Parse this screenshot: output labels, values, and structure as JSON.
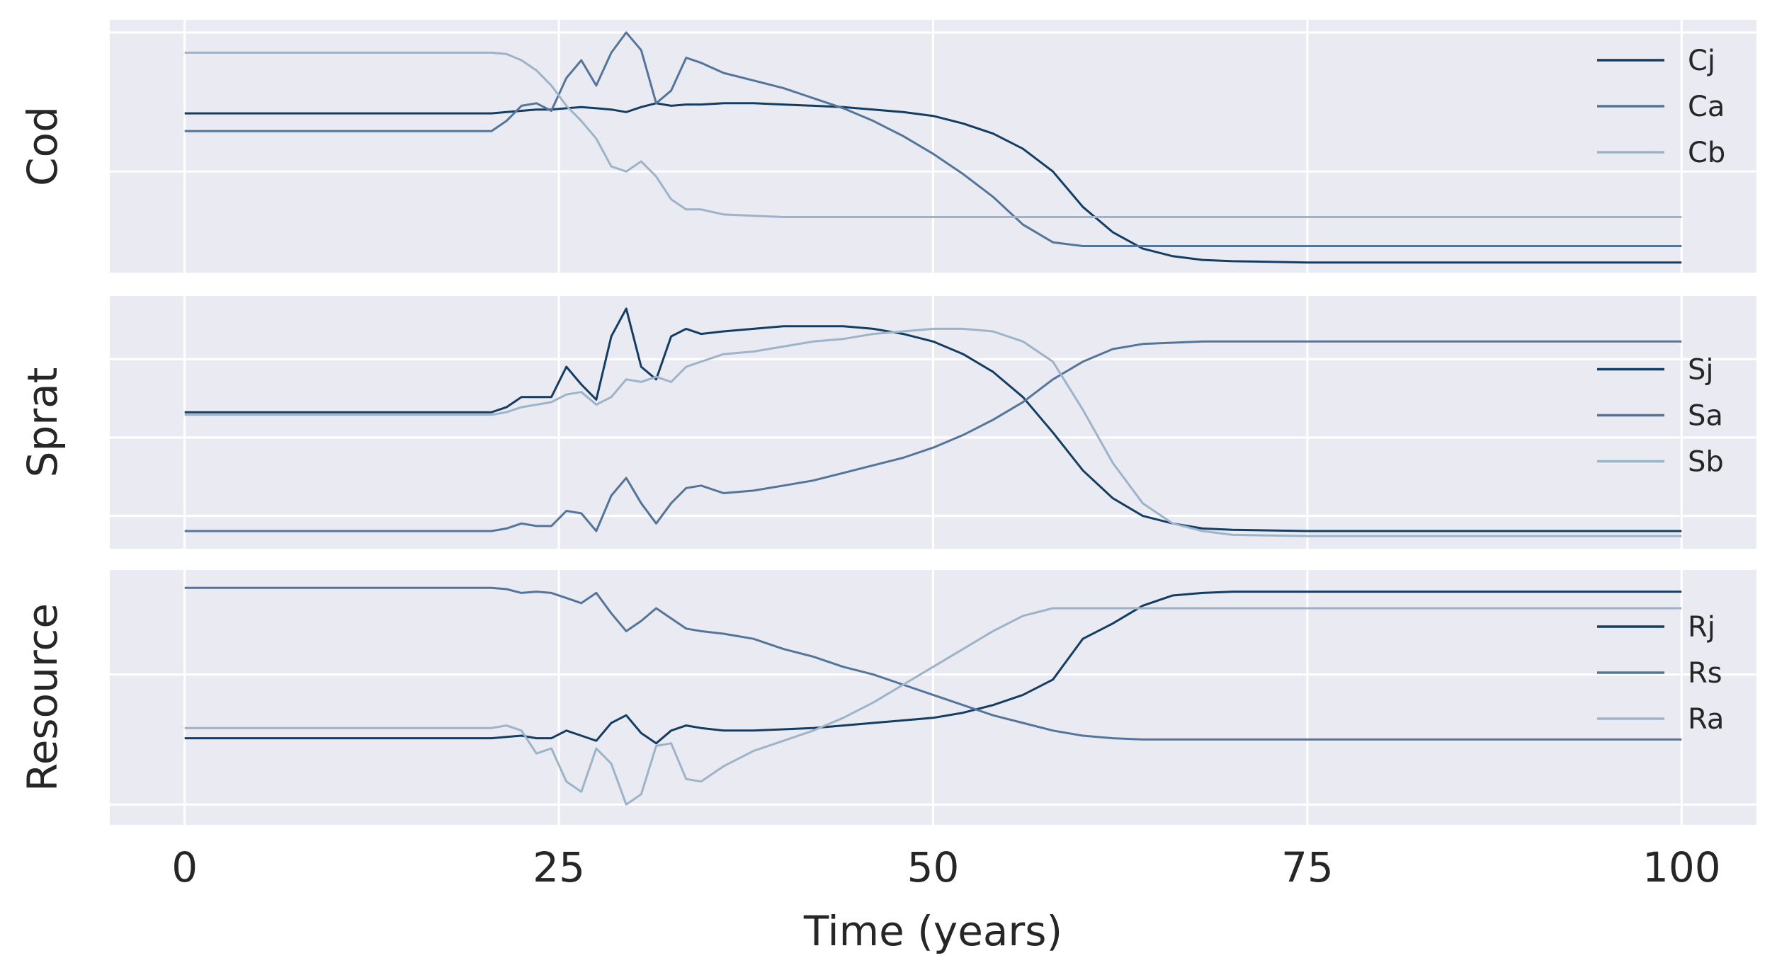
{
  "chart_data": {
    "type": "line",
    "xlabel": "Time (years)",
    "xlim": [
      -5,
      105
    ],
    "xticks": [
      0,
      25,
      50,
      75,
      100
    ],
    "x": [
      0,
      5,
      10,
      15,
      20,
      20.5,
      21.5,
      22.5,
      23.5,
      24.5,
      25.5,
      26.5,
      27.5,
      28.5,
      29.5,
      30.5,
      31.5,
      32.5,
      33.5,
      34.5,
      36,
      38,
      40,
      42,
      44,
      46,
      48,
      50,
      52,
      54,
      56,
      58,
      60,
      62,
      64,
      66,
      68,
      70,
      75,
      80,
      90,
      100
    ],
    "colors": {
      "juvenile": "#143d63",
      "adult": "#54759a",
      "third": "#9db3c8",
      "background": "#e9eaf2",
      "grid": "#ffffff"
    },
    "panels": [
      {
        "ylabel": "Cod",
        "ylim": [
          0,
          1
        ],
        "gridlines_y": [
          0.4,
          0.95
        ],
        "legend_position": "top-right",
        "series": [
          {
            "name": "Cj",
            "color": "#143d63",
            "values": [
              0.63,
              0.63,
              0.63,
              0.63,
              0.63,
              0.63,
              0.635,
              0.64,
              0.645,
              0.645,
              0.65,
              0.655,
              0.65,
              0.645,
              0.635,
              0.655,
              0.67,
              0.66,
              0.665,
              0.665,
              0.67,
              0.67,
              0.665,
              0.66,
              0.655,
              0.645,
              0.635,
              0.62,
              0.59,
              0.55,
              0.49,
              0.4,
              0.26,
              0.16,
              0.095,
              0.065,
              0.05,
              0.045,
              0.04,
              0.04,
              0.04,
              0.04
            ]
          },
          {
            "name": "Ca",
            "color": "#54759a",
            "values": [
              0.56,
              0.56,
              0.56,
              0.56,
              0.56,
              0.56,
              0.6,
              0.66,
              0.67,
              0.64,
              0.77,
              0.84,
              0.74,
              0.87,
              0.95,
              0.88,
              0.67,
              0.72,
              0.85,
              0.83,
              0.79,
              0.76,
              0.73,
              0.69,
              0.65,
              0.6,
              0.54,
              0.47,
              0.39,
              0.3,
              0.19,
              0.12,
              0.105,
              0.105,
              0.105,
              0.105,
              0.105,
              0.105,
              0.105,
              0.105,
              0.105,
              0.105
            ]
          },
          {
            "name": "Cb",
            "color": "#9db3c8",
            "values": [
              0.87,
              0.87,
              0.87,
              0.87,
              0.87,
              0.87,
              0.865,
              0.84,
              0.8,
              0.74,
              0.66,
              0.6,
              0.53,
              0.42,
              0.4,
              0.44,
              0.38,
              0.29,
              0.25,
              0.25,
              0.23,
              0.225,
              0.22,
              0.22,
              0.22,
              0.22,
              0.22,
              0.22,
              0.22,
              0.22,
              0.22,
              0.22,
              0.22,
              0.22,
              0.22,
              0.22,
              0.22,
              0.22,
              0.22,
              0.22,
              0.22,
              0.22
            ]
          }
        ]
      },
      {
        "ylabel": "Sprat",
        "ylim": [
          0,
          1
        ],
        "gridlines_y": [
          0.13,
          0.44,
          0.75
        ],
        "legend_position": "center-right",
        "series": [
          {
            "name": "Sj",
            "color": "#143d63",
            "values": [
              0.54,
              0.54,
              0.54,
              0.54,
              0.54,
              0.54,
              0.56,
              0.6,
              0.6,
              0.6,
              0.72,
              0.65,
              0.59,
              0.84,
              0.95,
              0.72,
              0.67,
              0.84,
              0.87,
              0.85,
              0.86,
              0.87,
              0.88,
              0.88,
              0.88,
              0.87,
              0.85,
              0.82,
              0.77,
              0.7,
              0.6,
              0.46,
              0.31,
              0.2,
              0.13,
              0.1,
              0.08,
              0.075,
              0.07,
              0.07,
              0.07,
              0.07
            ]
          },
          {
            "name": "Sa",
            "color": "#54759a",
            "values": [
              0.07,
              0.07,
              0.07,
              0.07,
              0.07,
              0.07,
              0.08,
              0.1,
              0.09,
              0.09,
              0.15,
              0.14,
              0.07,
              0.21,
              0.28,
              0.18,
              0.1,
              0.18,
              0.24,
              0.25,
              0.22,
              0.23,
              0.25,
              0.27,
              0.3,
              0.33,
              0.36,
              0.4,
              0.45,
              0.51,
              0.58,
              0.67,
              0.74,
              0.79,
              0.81,
              0.815,
              0.82,
              0.82,
              0.82,
              0.82,
              0.82,
              0.82
            ]
          },
          {
            "name": "Sb",
            "color": "#9db3c8",
            "values": [
              0.53,
              0.53,
              0.53,
              0.53,
              0.53,
              0.53,
              0.54,
              0.56,
              0.57,
              0.58,
              0.61,
              0.62,
              0.57,
              0.6,
              0.67,
              0.66,
              0.68,
              0.66,
              0.72,
              0.74,
              0.77,
              0.78,
              0.8,
              0.82,
              0.83,
              0.85,
              0.86,
              0.87,
              0.87,
              0.86,
              0.82,
              0.74,
              0.55,
              0.34,
              0.18,
              0.1,
              0.07,
              0.055,
              0.05,
              0.05,
              0.05,
              0.05
            ]
          }
        ]
      },
      {
        "ylabel": "Resource",
        "ylim": [
          0,
          1
        ],
        "gridlines_y": [
          0.08,
          0.59
        ],
        "legend_position": "center-right",
        "series": [
          {
            "name": "Rj",
            "color": "#143d63",
            "values": [
              0.34,
              0.34,
              0.34,
              0.34,
              0.34,
              0.34,
              0.345,
              0.35,
              0.34,
              0.34,
              0.37,
              0.35,
              0.33,
              0.4,
              0.43,
              0.36,
              0.32,
              0.37,
              0.39,
              0.38,
              0.37,
              0.37,
              0.375,
              0.38,
              0.39,
              0.4,
              0.41,
              0.42,
              0.44,
              0.47,
              0.51,
              0.57,
              0.73,
              0.79,
              0.86,
              0.9,
              0.91,
              0.915,
              0.915,
              0.915,
              0.915,
              0.915
            ]
          },
          {
            "name": "Rs",
            "color": "#54759a",
            "values": [
              0.93,
              0.93,
              0.93,
              0.93,
              0.93,
              0.93,
              0.925,
              0.91,
              0.915,
              0.91,
              0.89,
              0.87,
              0.91,
              0.83,
              0.76,
              0.8,
              0.85,
              0.81,
              0.77,
              0.76,
              0.75,
              0.73,
              0.69,
              0.66,
              0.62,
              0.59,
              0.55,
              0.51,
              0.47,
              0.43,
              0.4,
              0.37,
              0.35,
              0.34,
              0.335,
              0.335,
              0.335,
              0.335,
              0.335,
              0.335,
              0.335,
              0.335
            ]
          },
          {
            "name": "Ra",
            "color": "#9db3c8",
            "values": [
              0.38,
              0.38,
              0.38,
              0.38,
              0.38,
              0.38,
              0.39,
              0.37,
              0.28,
              0.3,
              0.17,
              0.13,
              0.3,
              0.24,
              0.08,
              0.12,
              0.31,
              0.32,
              0.18,
              0.17,
              0.23,
              0.29,
              0.33,
              0.37,
              0.42,
              0.48,
              0.55,
              0.62,
              0.69,
              0.76,
              0.82,
              0.85,
              0.85,
              0.85,
              0.85,
              0.85,
              0.85,
              0.85,
              0.85,
              0.85,
              0.85,
              0.85
            ]
          }
        ]
      }
    ]
  }
}
